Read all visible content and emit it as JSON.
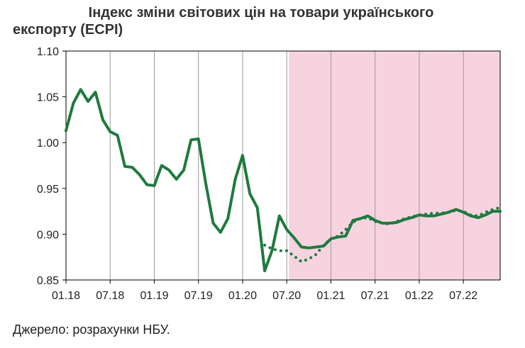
{
  "title": {
    "line1": "Індекс зміни світових цін на товари українського",
    "line2": "експорту (ECPI)"
  },
  "source": "Джерело: розрахунки НБУ.",
  "colors": {
    "series": "#1e7a3e",
    "forecast_band": "#f7d3e0",
    "grid": "#999999",
    "axis": "#000000"
  },
  "chart_data": {
    "type": "line",
    "title": "Індекс зміни світових цін на товари українського експорту (ECPI)",
    "xlabel": "",
    "ylabel": "",
    "ylim": [
      0.85,
      1.1
    ],
    "yticks": [
      "0.85",
      "0.90",
      "0.95",
      "1.00",
      "1.05",
      "1.10"
    ],
    "yticks_values": [
      0.85,
      0.9,
      0.95,
      1.0,
      1.05,
      1.1
    ],
    "xticks": [
      "01.18",
      "07.18",
      "01.19",
      "07.19",
      "01.20",
      "07.20",
      "01.21",
      "07.21",
      "01.22",
      "07.22"
    ],
    "grid": "vertical",
    "forecast_band": {
      "start": "07.20",
      "end": "12.22"
    },
    "months": [
      "01.18",
      "02.18",
      "03.18",
      "04.18",
      "05.18",
      "06.18",
      "07.18",
      "08.18",
      "09.18",
      "10.18",
      "11.18",
      "12.18",
      "01.19",
      "02.19",
      "03.19",
      "04.19",
      "05.19",
      "06.19",
      "07.19",
      "08.19",
      "09.19",
      "10.19",
      "11.19",
      "12.19",
      "01.20",
      "02.20",
      "03.20",
      "04.20",
      "05.20",
      "06.20",
      "07.20",
      "08.20",
      "09.20",
      "10.20",
      "11.20",
      "12.20",
      "01.21",
      "02.21",
      "03.21",
      "04.21",
      "05.21",
      "06.21",
      "07.21",
      "08.21",
      "09.21",
      "10.21",
      "11.21",
      "12.21",
      "01.22",
      "02.22",
      "03.22",
      "04.22",
      "05.22",
      "06.22",
      "07.22",
      "08.22",
      "09.22",
      "10.22",
      "11.22",
      "12.22"
    ],
    "series": [
      {
        "style": "solid",
        "values": [
          1.013,
          1.043,
          1.058,
          1.045,
          1.055,
          1.025,
          1.012,
          1.008,
          0.974,
          0.973,
          0.965,
          0.954,
          0.953,
          0.975,
          0.97,
          0.96,
          0.97,
          1.003,
          1.004,
          0.955,
          0.912,
          0.902,
          0.917,
          0.96,
          0.986,
          0.944,
          0.929,
          0.86,
          0.882,
          0.92,
          0.905,
          0.896,
          0.886,
          0.885,
          0.886,
          0.887,
          0.895,
          0.897,
          0.898,
          0.915,
          0.917,
          0.92,
          0.915,
          0.912,
          0.912,
          0.913,
          0.916,
          0.918,
          0.921,
          0.92,
          0.92,
          0.922,
          0.924,
          0.927,
          0.924,
          0.92,
          0.918,
          0.921,
          0.925,
          0.925
        ]
      },
      {
        "style": "dotted",
        "values": [
          null,
          null,
          null,
          null,
          null,
          null,
          null,
          null,
          null,
          null,
          null,
          null,
          null,
          null,
          null,
          null,
          null,
          null,
          null,
          null,
          null,
          null,
          null,
          null,
          null,
          null,
          null,
          0.888,
          0.884,
          0.882,
          0.882,
          0.876,
          0.87,
          0.873,
          0.878,
          0.888,
          0.895,
          0.898,
          0.905,
          0.913,
          0.917,
          0.918,
          0.914,
          0.912,
          0.911,
          0.914,
          0.917,
          0.919,
          0.921,
          0.922,
          0.923,
          0.923,
          0.924,
          0.926,
          0.925,
          0.921,
          0.92,
          0.924,
          0.927,
          0.929
        ]
      }
    ]
  }
}
